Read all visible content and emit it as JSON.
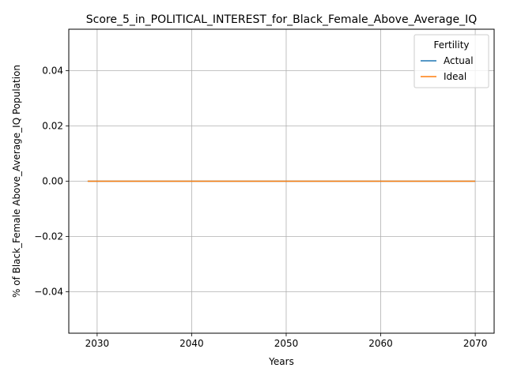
{
  "chart_data": {
    "type": "line",
    "title": "Score_5_in_POLITICAL_INTEREST_for_Black_Female_Above_Average_IQ",
    "xlabel": "Years",
    "ylabel": "% of Black_Female Above_Average_IQ Population",
    "xlim": [
      2027,
      2072
    ],
    "ylim": [
      -0.055,
      0.055
    ],
    "x_ticks": [
      2030,
      2040,
      2050,
      2060,
      2070
    ],
    "y_ticks": [
      -0.04,
      -0.02,
      0.0,
      0.02,
      0.04
    ],
    "y_tick_labels": [
      "−0.04",
      "−0.02",
      "0.00",
      "0.02",
      "0.04"
    ],
    "grid": true,
    "legend": {
      "title": "Fertility",
      "placement": "top-right"
    },
    "x": [
      2029,
      2030,
      2031,
      2032,
      2033,
      2034,
      2035,
      2036,
      2037,
      2038,
      2039,
      2040,
      2041,
      2042,
      2043,
      2044,
      2045,
      2046,
      2047,
      2048,
      2049,
      2050,
      2051,
      2052,
      2053,
      2054,
      2055,
      2056,
      2057,
      2058,
      2059,
      2060,
      2061,
      2062,
      2063,
      2064,
      2065,
      2066,
      2067,
      2068,
      2069,
      2070
    ],
    "series": [
      {
        "name": "Actual",
        "color": "#1f77b4",
        "values": [
          0,
          0,
          0,
          0,
          0,
          0,
          0,
          0,
          0,
          0,
          0,
          0,
          0,
          0,
          0,
          0,
          0,
          0,
          0,
          0,
          0,
          0,
          0,
          0,
          0,
          0,
          0,
          0,
          0,
          0,
          0,
          0,
          0,
          0,
          0,
          0,
          0,
          0,
          0,
          0,
          0,
          0
        ]
      },
      {
        "name": "Ideal",
        "color": "#ff7f0e",
        "values": [
          0,
          0,
          0,
          0,
          0,
          0,
          0,
          0,
          0,
          0,
          0,
          0,
          0,
          0,
          0,
          0,
          0,
          0,
          0,
          0,
          0,
          0,
          0,
          0,
          0,
          0,
          0,
          0,
          0,
          0,
          0,
          0,
          0,
          0,
          0,
          0,
          0,
          0,
          0,
          0,
          0,
          0
        ]
      }
    ]
  }
}
